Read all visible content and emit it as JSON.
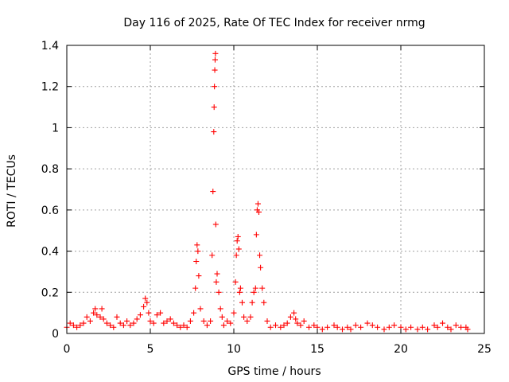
{
  "chart_data": {
    "type": "scatter",
    "title": "Day 116 of 2025, Rate Of TEC Index for receiver nrmg",
    "xlabel": "GPS time / hours",
    "ylabel": "ROTI / TECUs",
    "xlim": [
      0,
      25
    ],
    "ylim": [
      0,
      1.4
    ],
    "xticks": [
      0,
      5,
      10,
      15,
      20,
      25
    ],
    "xtick_labels": [
      "0",
      "5",
      "10",
      "15",
      "20",
      "25"
    ],
    "yticks": [
      0,
      0.2,
      0.4,
      0.6,
      0.8,
      1.0,
      1.2,
      1.4
    ],
    "ytick_labels": [
      "0",
      "0.2",
      "0.4",
      "0.6",
      "0.8",
      "1",
      "1.2",
      "1.4"
    ],
    "grid": true,
    "marker": "+",
    "color": "#ff0000",
    "series": [
      {
        "name": "ROTI",
        "x": [
          0.0,
          0.2,
          0.4,
          0.6,
          0.8,
          1.0,
          1.2,
          1.4,
          1.6,
          1.7,
          1.8,
          2.0,
          2.1,
          2.2,
          2.4,
          2.6,
          2.8,
          3.0,
          3.2,
          3.4,
          3.6,
          3.8,
          4.0,
          4.2,
          4.4,
          4.6,
          4.7,
          4.8,
          4.9,
          5.0,
          5.2,
          5.4,
          5.6,
          5.8,
          6.0,
          6.2,
          6.4,
          6.6,
          6.8,
          7.0,
          7.2,
          7.4,
          7.6,
          7.7,
          7.75,
          7.8,
          7.85,
          7.9,
          8.0,
          8.2,
          8.4,
          8.6,
          8.7,
          8.75,
          8.8,
          8.82,
          8.84,
          8.86,
          8.88,
          8.9,
          8.92,
          8.95,
          9.0,
          9.1,
          9.2,
          9.3,
          9.4,
          9.6,
          9.8,
          10.0,
          10.1,
          10.15,
          10.2,
          10.25,
          10.3,
          10.35,
          10.4,
          10.5,
          10.6,
          10.8,
          11.0,
          11.1,
          11.2,
          11.3,
          11.35,
          11.4,
          11.45,
          11.5,
          11.55,
          11.6,
          11.7,
          11.8,
          12.0,
          12.2,
          12.5,
          12.8,
          13.0,
          13.2,
          13.4,
          13.6,
          13.7,
          13.8,
          14.0,
          14.2,
          14.5,
          14.8,
          15.0,
          15.3,
          15.6,
          16.0,
          16.2,
          16.5,
          16.8,
          17.0,
          17.3,
          17.6,
          18.0,
          18.3,
          18.6,
          19.0,
          19.3,
          19.6,
          20.0,
          20.3,
          20.6,
          21.0,
          21.3,
          21.6,
          22.0,
          22.2,
          22.5,
          22.8,
          23.0,
          23.3,
          23.6,
          23.9,
          24.0
        ],
        "y": [
          0.03,
          0.05,
          0.04,
          0.03,
          0.04,
          0.05,
          0.08,
          0.06,
          0.1,
          0.12,
          0.09,
          0.08,
          0.12,
          0.07,
          0.05,
          0.04,
          0.03,
          0.08,
          0.05,
          0.04,
          0.06,
          0.04,
          0.05,
          0.07,
          0.09,
          0.13,
          0.17,
          0.15,
          0.1,
          0.06,
          0.05,
          0.09,
          0.1,
          0.05,
          0.06,
          0.07,
          0.05,
          0.04,
          0.03,
          0.04,
          0.03,
          0.06,
          0.1,
          0.22,
          0.35,
          0.43,
          0.4,
          0.28,
          0.12,
          0.06,
          0.04,
          0.06,
          0.38,
          0.69,
          0.98,
          1.1,
          1.2,
          1.28,
          1.33,
          1.36,
          0.53,
          0.25,
          0.29,
          0.2,
          0.12,
          0.08,
          0.04,
          0.06,
          0.05,
          0.1,
          0.25,
          0.38,
          0.45,
          0.47,
          0.41,
          0.2,
          0.22,
          0.15,
          0.08,
          0.06,
          0.08,
          0.15,
          0.2,
          0.22,
          0.48,
          0.6,
          0.63,
          0.59,
          0.38,
          0.32,
          0.22,
          0.15,
          0.06,
          0.03,
          0.04,
          0.03,
          0.04,
          0.05,
          0.08,
          0.1,
          0.07,
          0.05,
          0.04,
          0.06,
          0.03,
          0.04,
          0.03,
          0.02,
          0.03,
          0.04,
          0.03,
          0.02,
          0.03,
          0.02,
          0.04,
          0.03,
          0.05,
          0.04,
          0.03,
          0.02,
          0.03,
          0.04,
          0.03,
          0.02,
          0.03,
          0.02,
          0.03,
          0.02,
          0.04,
          0.03,
          0.05,
          0.03,
          0.02,
          0.04,
          0.03,
          0.03,
          0.02
        ]
      }
    ]
  }
}
